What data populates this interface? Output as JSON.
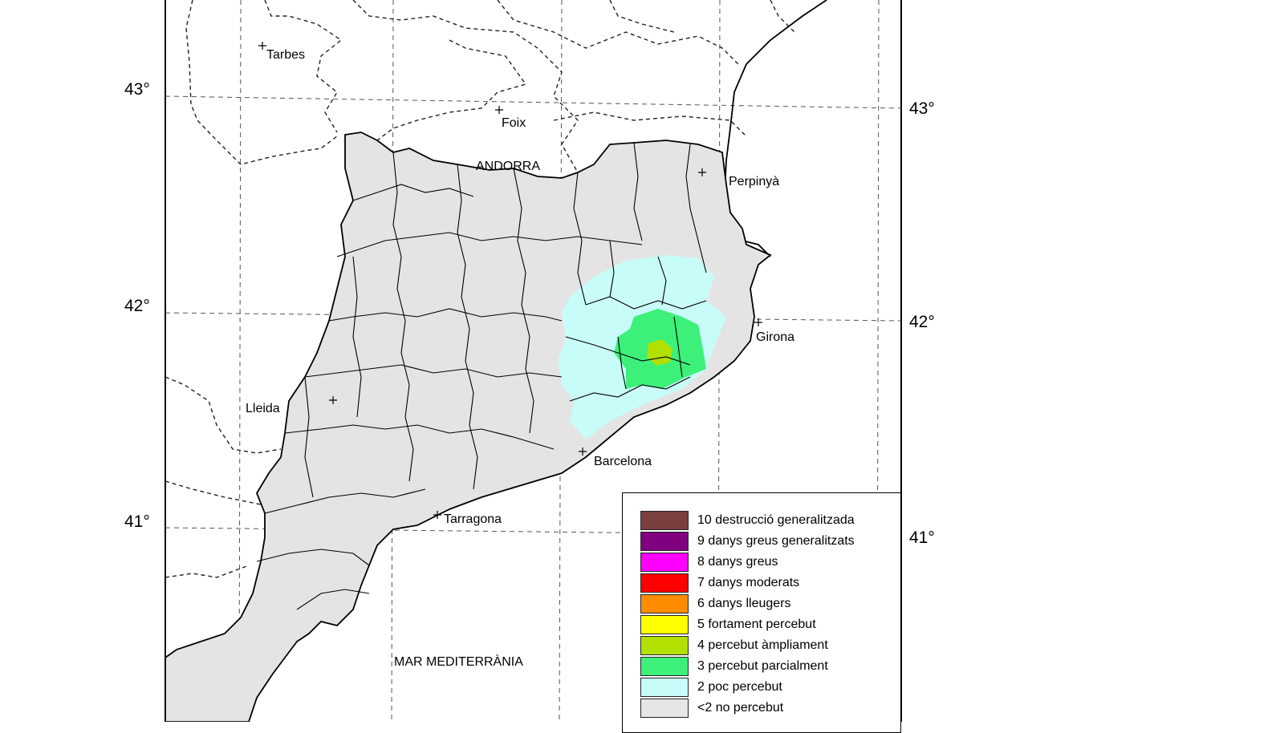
{
  "lat_labels": {
    "left_43": "43°",
    "left_42": "42°",
    "left_41": "41°",
    "right_43": "43°",
    "right_42": "42°",
    "right_41": "41°"
  },
  "places": {
    "tarbes": "Tarbes",
    "foix": "Foix",
    "andorra": "ANDORRA",
    "perpinya": "Perpinyà",
    "girona": "Girona",
    "lleida": "Lleida",
    "barcelona": "Barcelona",
    "tarragona": "Tarragona",
    "mar": "MAR MEDITERRÀNIA"
  },
  "legend": [
    {
      "label": "10 destrucció generalitzada",
      "color": "#7b3f3f"
    },
    {
      "label": "9 danys greus generalitzats",
      "color": "#800080"
    },
    {
      "label": "8 danys greus",
      "color": "#ff00ff"
    },
    {
      "label": "7 danys moderats",
      "color": "#ff0000"
    },
    {
      "label": "6 danys lleugers",
      "color": "#ff8c00"
    },
    {
      "label": "5 fortament percebut",
      "color": "#ffff00"
    },
    {
      "label": "4 percebut àmpliament",
      "color": "#b2e000"
    },
    {
      "label": "3 percebut parcialment",
      "color": "#3cf07a"
    },
    {
      "label": "2 poc percebut",
      "color": "#c8fcf8"
    },
    {
      "label": "<2 no percebut",
      "color": "#e6e6e6"
    }
  ],
  "colors": {
    "land": "#e4e4e4",
    "intensity_2": "#c8fcf8",
    "intensity_3": "#3cf07a",
    "intensity_4": "#b2e000"
  }
}
